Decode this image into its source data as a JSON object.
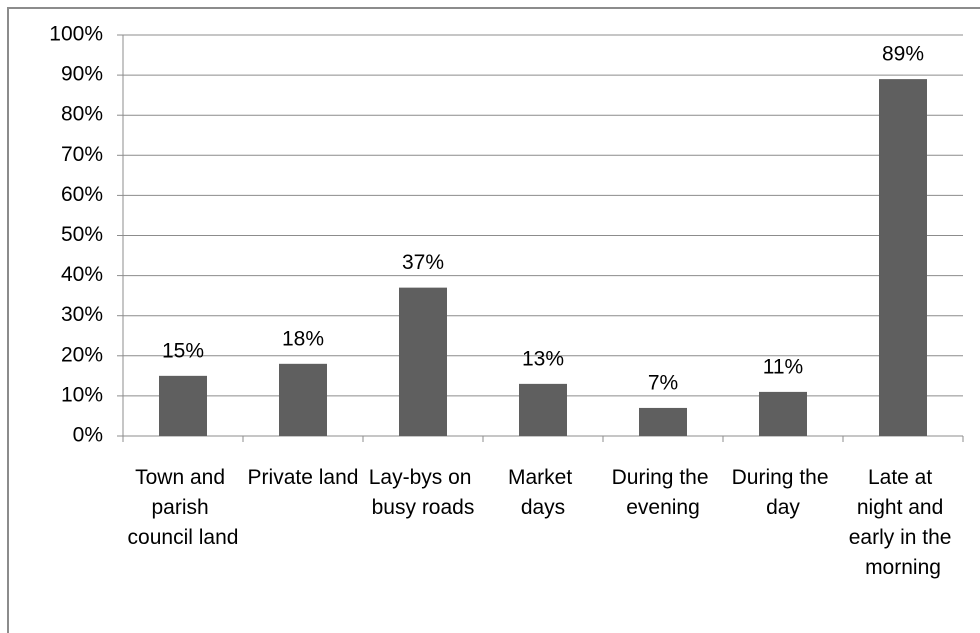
{
  "chart_data": {
    "type": "bar",
    "categories": [
      "Town and parish council land",
      "Private land",
      "Lay-bys on busy roads",
      "Market days",
      "During the evening",
      "During the day",
      "Late at night and early in the morning"
    ],
    "values": [
      15,
      18,
      37,
      13,
      7,
      11,
      89
    ],
    "value_labels": [
      "15%",
      "18%",
      "37%",
      "13%",
      "7%",
      "11%",
      "89%"
    ],
    "color": "#5f5f5f",
    "ylim": [
      0,
      100
    ],
    "yticks": [
      {
        "value": 0,
        "label": "0%"
      },
      {
        "value": 10,
        "label": "10%"
      },
      {
        "value": 20,
        "label": "20%"
      },
      {
        "value": 30,
        "label": "30%"
      },
      {
        "value": 40,
        "label": "40%"
      },
      {
        "value": 50,
        "label": "50%"
      },
      {
        "value": 60,
        "label": "60%"
      },
      {
        "value": 70,
        "label": "70%"
      },
      {
        "value": 80,
        "label": "80%"
      },
      {
        "value": 90,
        "label": "90%"
      },
      {
        "value": 100,
        "label": "100%"
      }
    ],
    "grid": true
  }
}
